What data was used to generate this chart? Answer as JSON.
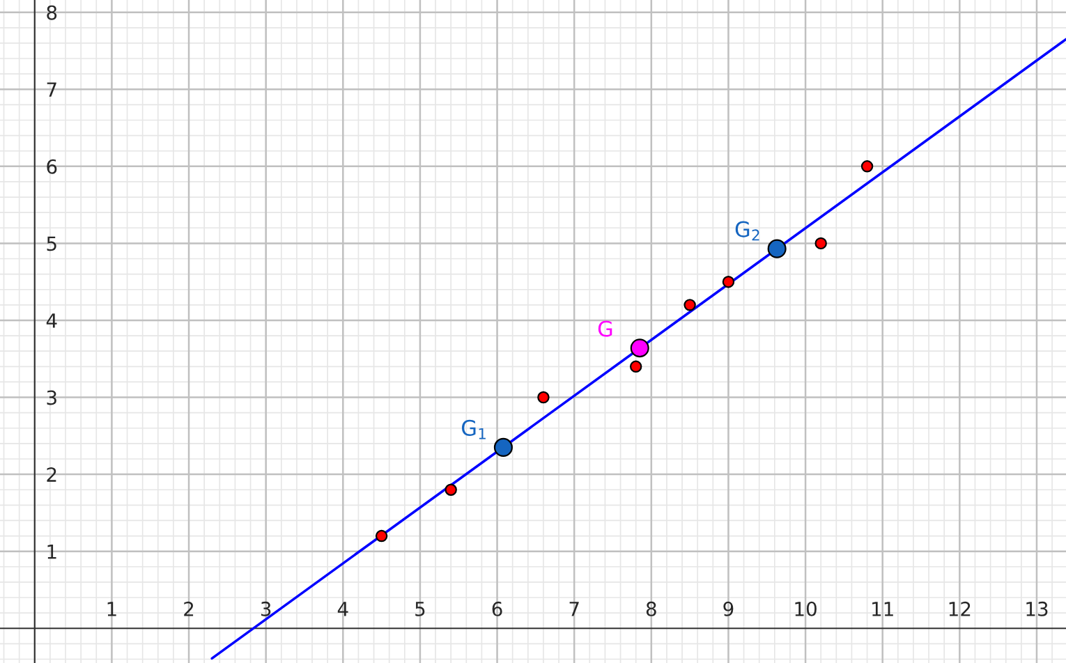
{
  "chart_data": {
    "type": "scatter",
    "xlim": [
      -0.45,
      13.38
    ],
    "ylim": [
      -0.45,
      8.16
    ],
    "xticks": [
      1,
      2,
      3,
      4,
      5,
      6,
      7,
      8,
      9,
      10,
      11,
      12,
      13
    ],
    "yticks": [
      1,
      2,
      3,
      4,
      5,
      6,
      7,
      8
    ],
    "grid": true,
    "series": [
      {
        "type": "line",
        "color": "#0000ff",
        "x": [
          2.3,
          13.38
        ],
        "values": [
          -0.39,
          7.65
        ]
      },
      {
        "color": "#ff0000",
        "marker": "circle",
        "x": [
          4.5,
          5.4,
          6.6,
          7.8,
          8.5,
          9,
          10.2,
          10.8
        ],
        "values": [
          1.2,
          1.8,
          3,
          3.4,
          4.2,
          4.5,
          5,
          6
        ]
      },
      {
        "name": "G$_{1}$",
        "color": "#1565c0",
        "marker": "circle",
        "x": [
          6.08
        ],
        "values": [
          2.35
        ]
      },
      {
        "name": "G",
        "color": "#ff00ff",
        "marker": "circle",
        "x": [
          7.85
        ],
        "values": [
          3.64
        ]
      },
      {
        "name": "G$_{2}$",
        "color": "#1565c0",
        "marker": "circle",
        "x": [
          9.63
        ],
        "values": [
          4.93
        ]
      }
    ]
  }
}
